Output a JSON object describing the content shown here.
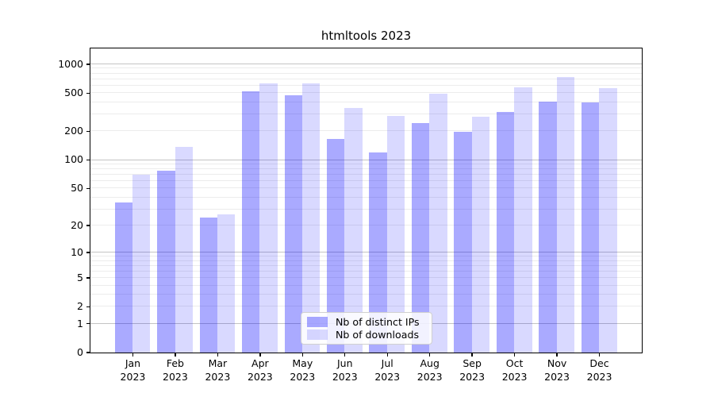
{
  "chart_data": {
    "type": "bar",
    "title": "htmltools 2023",
    "categories": [
      "Jan 2023",
      "Feb 2023",
      "Mar 2023",
      "Apr 2023",
      "May 2023",
      "Jun 2023",
      "Jul 2023",
      "Aug 2023",
      "Sep 2023",
      "Oct 2023",
      "Nov 2023",
      "Dec 2023"
    ],
    "series": [
      {
        "name": "Nb of distinct IPs",
        "color": "#0000FF55",
        "values": [
          35,
          76,
          24,
          520,
          470,
          166,
          118,
          241,
          194,
          318,
          408,
          398
        ]
      },
      {
        "name": "Nb of downloads",
        "color": "#0000FF26",
        "values": [
          70,
          137,
          26,
          630,
          628,
          345,
          285,
          490,
          280,
          572,
          736,
          564
        ]
      }
    ],
    "yscale": "log1p",
    "yticks": [
      0,
      1,
      2,
      5,
      10,
      20,
      50,
      100,
      200,
      500,
      1000
    ],
    "ylim": [
      0,
      1460
    ],
    "xlabel": "",
    "ylabel": "",
    "grid": {
      "orientation": "horizontal",
      "major_at": [
        1,
        10,
        100,
        1000
      ],
      "major_color": "#c4c4c4",
      "minor_color": "#ececec"
    },
    "legend": {
      "position": "lower-center-inside",
      "entries": [
        "Nb of distinct IPs",
        "Nb of downloads"
      ]
    }
  },
  "axis": {
    "spine_color": "#000000",
    "tick_color": "#000000",
    "text_color": "#000000"
  }
}
